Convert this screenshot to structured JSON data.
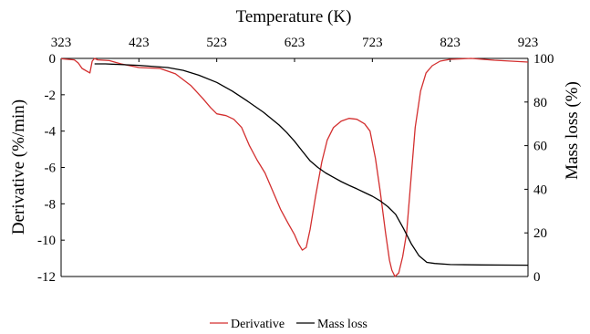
{
  "chart_data": {
    "type": "line",
    "title": "",
    "xlabel": "Temperature (K)",
    "ylabel_left": "Derivative (%/min)",
    "ylabel_right": "Mass loss (%)",
    "xlim": [
      323,
      923
    ],
    "ylim_left": [
      -12,
      0
    ],
    "ylim_right": [
      0,
      100
    ],
    "x_ticks": [
      "323",
      "423",
      "523",
      "623",
      "723",
      "823",
      "923"
    ],
    "y_left_ticks": [
      "0",
      "-2",
      "-4",
      "-6",
      "-8",
      "-10",
      "-12"
    ],
    "y_right_ticks": [
      "100",
      "80",
      "60",
      "40",
      "20",
      "0"
    ],
    "grid": false,
    "legend_position": "bottom",
    "colors": {
      "derivative": "#d32f2f",
      "mass_loss": "#000000"
    },
    "series": [
      {
        "name": "Derivative",
        "axis": "left",
        "x": [
          323,
          340,
          345,
          350,
          360,
          363,
          366,
          370,
          385,
          400,
          423,
          450,
          470,
          490,
          505,
          515,
          523,
          535,
          545,
          555,
          565,
          575,
          585,
          595,
          605,
          615,
          623,
          628,
          633,
          638,
          643,
          650,
          658,
          665,
          673,
          683,
          693,
          703,
          713,
          720,
          727,
          733,
          740,
          745,
          748,
          752,
          757,
          762,
          767,
          772,
          778,
          785,
          792,
          800,
          810,
          823,
          850,
          880,
          923
        ],
        "y": [
          -0.02,
          -0.08,
          -0.25,
          -0.55,
          -0.8,
          -0.15,
          0.0,
          -0.08,
          -0.12,
          -0.3,
          -0.5,
          -0.55,
          -0.85,
          -1.5,
          -2.2,
          -2.7,
          -3.05,
          -3.15,
          -3.35,
          -3.8,
          -4.8,
          -5.6,
          -6.3,
          -7.3,
          -8.3,
          -9.1,
          -9.7,
          -10.2,
          -10.55,
          -10.4,
          -9.4,
          -7.6,
          -5.7,
          -4.5,
          -3.8,
          -3.45,
          -3.3,
          -3.35,
          -3.6,
          -4.0,
          -5.5,
          -7.3,
          -9.6,
          -11.1,
          -11.65,
          -12.0,
          -11.8,
          -10.9,
          -9.6,
          -7.0,
          -3.8,
          -1.8,
          -0.8,
          -0.4,
          -0.15,
          -0.05,
          0.0,
          -0.1,
          -0.2
        ]
      },
      {
        "name": "Mass loss",
        "axis": "right",
        "x": [
          366,
          380,
          423,
          460,
          480,
          500,
          523,
          543,
          563,
          583,
          603,
          613,
          623,
          633,
          643,
          653,
          663,
          673,
          683,
          693,
          703,
          713,
          723,
          733,
          743,
          753,
          763,
          773,
          783,
          793,
          803,
          823,
          863,
          923
        ],
        "y": [
          97.5,
          97.5,
          96.8,
          95.8,
          94.5,
          92.3,
          89.0,
          85.0,
          80.3,
          75.3,
          69.5,
          66.0,
          62.0,
          57.5,
          53.0,
          50.0,
          47.5,
          45.5,
          43.5,
          41.8,
          40.2,
          38.5,
          36.8,
          34.7,
          32.0,
          28.5,
          22.0,
          15.0,
          9.5,
          6.5,
          6.0,
          5.5,
          5.3,
          5.2
        ]
      }
    ]
  }
}
